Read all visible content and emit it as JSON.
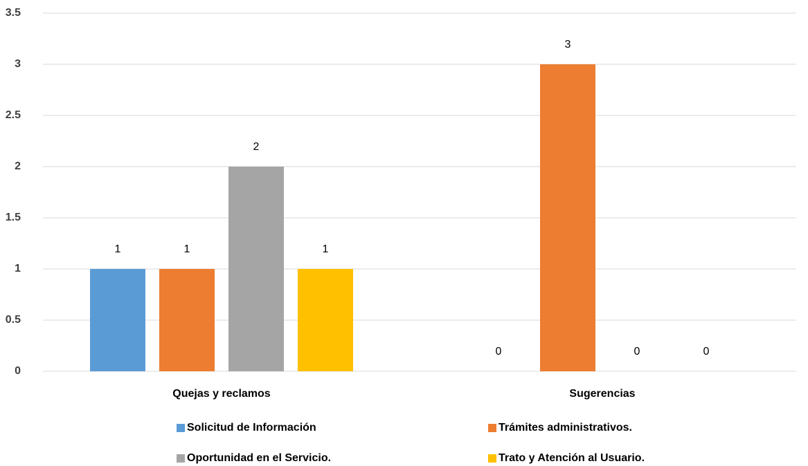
{
  "chart_data": {
    "type": "bar",
    "categories": [
      "Quejas y reclamos",
      "Sugerencias"
    ],
    "series": [
      {
        "name": "Solicitud de Información",
        "color": "#5b9bd5",
        "values": [
          1,
          0
        ]
      },
      {
        "name": "Trámites administrativos.",
        "color": "#ed7d31",
        "values": [
          1,
          3
        ]
      },
      {
        "name": "Oportunidad en el Servicio.",
        "color": "#a5a5a5",
        "values": [
          2,
          0
        ]
      },
      {
        "name": "Trato y Atención al Usuario.",
        "color": "#ffc000",
        "values": [
          1,
          0
        ]
      }
    ],
    "ylim": [
      0,
      3.5
    ],
    "yticks": [
      0,
      0.5,
      1,
      1.5,
      2,
      2.5,
      3,
      3.5
    ],
    "grid": true,
    "legend": "bottom"
  }
}
